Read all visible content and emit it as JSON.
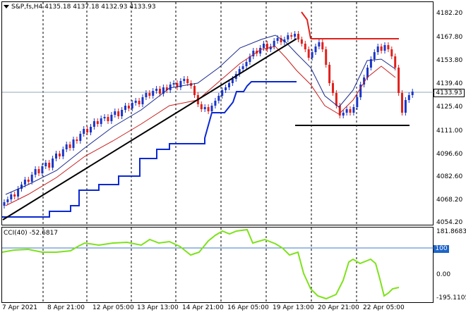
{
  "header": {
    "symbol": "S&P,fs,H4",
    "ohlc": "4135.18 4137.18 4132.93 4133.93"
  },
  "current_price": "4133.93",
  "price_axis": [
    "4182.20",
    "4167.80",
    "4153.80",
    "4139.40",
    "4125.40",
    "4111.00",
    "4096.60",
    "4082.60",
    "4068.20",
    "4054.20"
  ],
  "cci": {
    "label": "CCI(40) -52.6817",
    "axis_top": "181.8683",
    "level_100": "100",
    "axis_zero": "0.00",
    "axis_bottom": "-195.1105"
  },
  "time_axis": [
    "7 Apr 2021",
    "8 Apr 21:00",
    "12 Apr 05:00",
    "13 Apr 13:00",
    "14 Apr 21:00",
    "16 Apr 05:00",
    "19 Apr 13:00",
    "20 Apr 21:00",
    "22 Apr 05:00"
  ],
  "colors": {
    "bull": "#1a35c8",
    "bear": "#e0201c",
    "ma_fast": "#1a2a8c",
    "ma_slow": "#c81e1e",
    "trend": "#0a28d2",
    "support": "#000000",
    "cci_line": "#7ee21a",
    "level_line": "#3c78c8"
  }
}
